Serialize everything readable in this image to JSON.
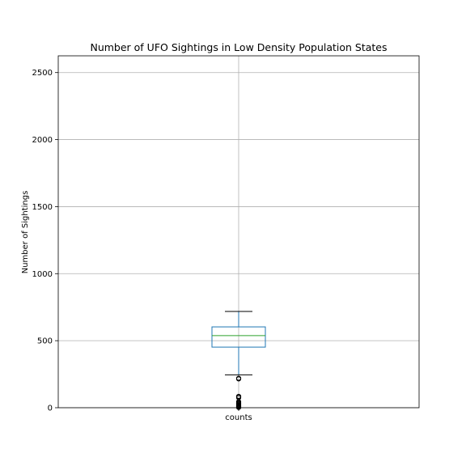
{
  "chart_data": {
    "type": "box",
    "title": "Number of UFO Sightings in Low Density Population States",
    "xlabel": "",
    "ylabel": "Number of Sightings",
    "categories": [
      "counts"
    ],
    "ylim": [
      0,
      2625
    ],
    "yticks": [
      0,
      500,
      1000,
      1500,
      2000,
      2500
    ],
    "grid": true,
    "box": {
      "whisker_low": 245,
      "q1": 452,
      "median": 538,
      "q3": 603,
      "whisker_high": 718
    },
    "outliers": [
      2,
      5,
      8,
      12,
      16,
      20,
      25,
      30,
      35,
      40,
      45,
      75,
      82,
      85,
      215,
      220
    ],
    "colors": {
      "box": "#1f77b4",
      "median": "#2ca02c",
      "whisker": "#1f77b4",
      "cap": "#000000",
      "grid": "#b0b0b0",
      "outlier": "#000000"
    }
  }
}
